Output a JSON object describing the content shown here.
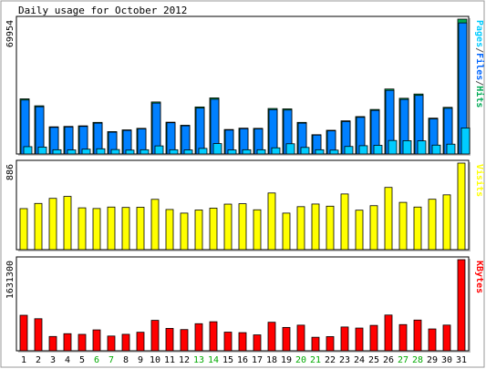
{
  "chart_data": {
    "type": "bar",
    "title": "Daily usage for October 2012",
    "categories": [
      "1",
      "2",
      "3",
      "4",
      "5",
      "6",
      "7",
      "8",
      "9",
      "10",
      "11",
      "12",
      "13",
      "14",
      "15",
      "16",
      "17",
      "18",
      "19",
      "20",
      "21",
      "22",
      "23",
      "24",
      "25",
      "26",
      "27",
      "28",
      "29",
      "30",
      "31"
    ],
    "weekend_days": [
      "6",
      "7",
      "13",
      "14",
      "20",
      "21",
      "27",
      "28"
    ],
    "panels": [
      {
        "id": "hits",
        "ymax": 69954,
        "ymax_label": "69954",
        "legend": [
          {
            "text": "Pages",
            "color": "#00ccff"
          },
          {
            "text": "/",
            "color": "#555555"
          },
          {
            "text": "Files",
            "color": "#0066ff"
          },
          {
            "text": "/",
            "color": "#555555"
          },
          {
            "text": "Hits",
            "color": "#00aa55"
          }
        ],
        "series": [
          {
            "name": "Hits",
            "color": "#00aa55",
            "values": [
              28600,
              25000,
              14100,
              14300,
              14600,
              16400,
              11600,
              12500,
              13300,
              27000,
              16500,
              14900,
              24400,
              29100,
              12700,
              13400,
              13300,
              23600,
              23400,
              16400,
              10000,
              12300,
              17200,
              19400,
              23100,
              33700,
              28900,
              31100,
              18600,
              24200,
              69954
            ]
          },
          {
            "name": "Files",
            "color": "#0080ff",
            "values": [
              28000,
              24500,
              13800,
              14000,
              14300,
              16000,
              11300,
              12200,
              13000,
              26400,
              16200,
              14600,
              23800,
              28400,
              12400,
              13100,
              13000,
              23000,
              22800,
              16000,
              9800,
              12000,
              16800,
              19000,
              22600,
              33000,
              28300,
              30400,
              18200,
              23700,
              68000
            ]
          },
          {
            "name": "Pages",
            "color": "#00ccff",
            "values": [
              3800,
              3600,
              2200,
              2100,
              2500,
              2700,
              2300,
              2000,
              2200,
              4200,
              2200,
              2100,
              2900,
              5400,
              2100,
              2200,
              2200,
              3200,
              5300,
              3400,
              2200,
              2000,
              3900,
              4300,
              4500,
              7000,
              6900,
              6800,
              4600,
              5100,
              13500
            ]
          }
        ]
      },
      {
        "id": "visits",
        "ymax": 886,
        "ymax_label": "886",
        "legend": [
          {
            "text": "Visits",
            "color": "#ffff00"
          }
        ],
        "series": [
          {
            "name": "Visits",
            "color": "#ffff00",
            "values": [
              420,
              473,
              525,
              545,
              428,
              421,
              436,
              432,
              434,
              515,
              411,
              374,
              406,
              425,
              466,
              470,
              408,
              580,
              374,
              440,
              467,
              445,
              570,
              404,
              450,
              637,
              484,
              436,
              516,
              561,
              886
            ]
          }
        ]
      },
      {
        "id": "kbytes",
        "ymax": 1631300,
        "ymax_label": "1631300",
        "legend": [
          {
            "text": "KBytes",
            "color": "#ff0000"
          }
        ],
        "series": [
          {
            "name": "KBytes",
            "color": "#ff0000",
            "values": [
              636000,
              574000,
              256000,
              306000,
              294000,
              374000,
              264000,
              295000,
              332000,
              545000,
              401000,
              380000,
              485000,
              520000,
              334000,
              325000,
              285000,
              511000,
              418000,
              459000,
              242000,
              254000,
              426000,
              407000,
              455000,
              640000,
              469000,
              550000,
              391000,
              460000,
              1631300
            ]
          }
        ]
      }
    ]
  }
}
